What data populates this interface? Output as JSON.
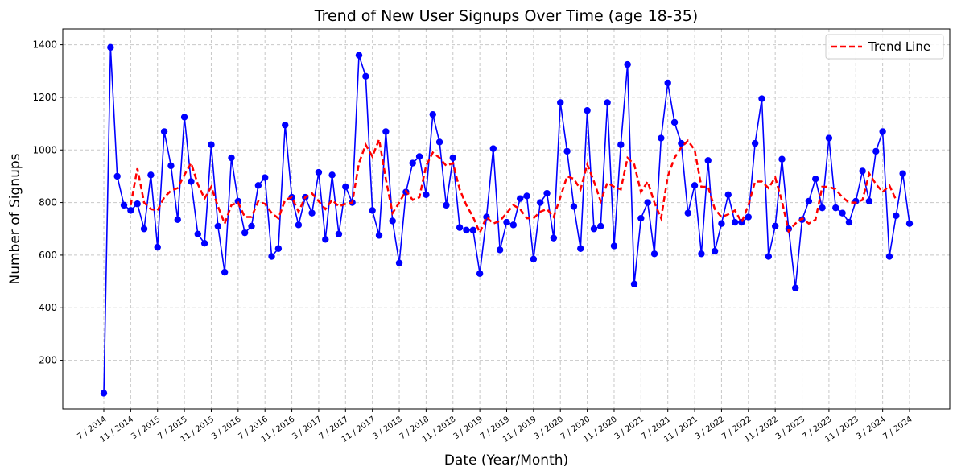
{
  "chart_data": {
    "type": "line",
    "title": "Trend of New User Signups Over Time (age 18-35)",
    "xlabel": "Date (Year/Month)",
    "ylabel": "Number of Signups",
    "ylim": [
      15,
      1460
    ],
    "yticks": [
      200,
      400,
      600,
      800,
      1000,
      1200,
      1400
    ],
    "grid": true,
    "legend_position": "top-right",
    "x_tick_labels": [
      "7 / 2014",
      "11 / 2014",
      "3 / 2015",
      "7 / 2015",
      "11 / 2015",
      "3 / 2016",
      "7 / 2016",
      "11 / 2016",
      "3 / 2017",
      "7 / 2017",
      "11 / 2017",
      "3 / 2018",
      "7 / 2018",
      "11 / 2018",
      "3 / 2019",
      "7 / 2019",
      "11 / 2019",
      "3 / 2020",
      "7 / 2020",
      "11 / 2020",
      "3 / 2021",
      "7 / 2021",
      "11 / 2021",
      "3 / 2022",
      "7 / 2022",
      "11 / 2022",
      "3 / 2023",
      "7 / 2023",
      "11 / 2023",
      "3 / 2024",
      "7 / 2024"
    ],
    "x_start": "2014-07",
    "months_per_tick": 4,
    "series": [
      {
        "name": "Signups",
        "color": "#0000ff",
        "marker": "circle",
        "values": [
          75,
          1390,
          900,
          790,
          770,
          795,
          700,
          905,
          630,
          1070,
          940,
          735,
          1125,
          880,
          680,
          645,
          1020,
          710,
          535,
          970,
          805,
          685,
          710,
          865,
          895,
          595,
          625,
          1095,
          820,
          715,
          820,
          760,
          915,
          660,
          905,
          680,
          860,
          800,
          1360,
          1280,
          770,
          675,
          1070,
          730,
          570,
          840,
          950,
          975,
          830,
          1135,
          1030,
          790,
          970,
          705,
          695,
          695,
          530,
          745,
          1005,
          620,
          725,
          715,
          815,
          825,
          585,
          800,
          835,
          665,
          1180,
          995,
          785,
          625,
          1150,
          700,
          710,
          1180,
          635,
          1020,
          1325,
          490,
          740,
          800,
          605,
          1045,
          1255,
          1105,
          1025,
          760,
          865,
          605,
          960,
          615,
          720,
          830,
          725,
          725,
          745,
          1025,
          1195,
          595,
          710,
          965,
          700,
          475,
          735,
          805,
          890,
          780,
          1045,
          780,
          760,
          725,
          805,
          920,
          805,
          995,
          1070,
          595,
          750,
          910,
          720
        ]
      },
      {
        "name": "Trend Line",
        "color": "#ff0000",
        "style": "dashed",
        "values": [
          null,
          null,
          null,
          null,
          790,
          930,
          800,
          775,
          770,
          820,
          845,
          855,
          905,
          950,
          870,
          815,
          860,
          785,
          720,
          790,
          800,
          745,
          745,
          805,
          795,
          760,
          740,
          810,
          820,
          765,
          820,
          835,
          805,
          775,
          810,
          785,
          795,
          800,
          950,
          1020,
          975,
          1040,
          890,
          760,
          800,
          845,
          810,
          820,
          940,
          990,
          970,
          940,
          950,
          850,
          790,
          745,
          685,
          745,
          720,
          730,
          760,
          790,
          775,
          740,
          740,
          765,
          775,
          745,
          820,
          900,
          890,
          850,
          945,
          880,
          805,
          875,
          860,
          850,
          970,
          945,
          840,
          880,
          800,
          740,
          900,
          970,
          1010,
          1035,
          1000,
          860,
          860,
          775,
          745,
          755,
          770,
          725,
          790,
          880,
          880,
          855,
          895,
          805,
          690,
          720,
          740,
          720,
          735,
          860,
          860,
          850,
          820,
          800,
          800,
          810,
          910,
          870,
          840,
          865,
          810
        ]
      }
    ]
  }
}
